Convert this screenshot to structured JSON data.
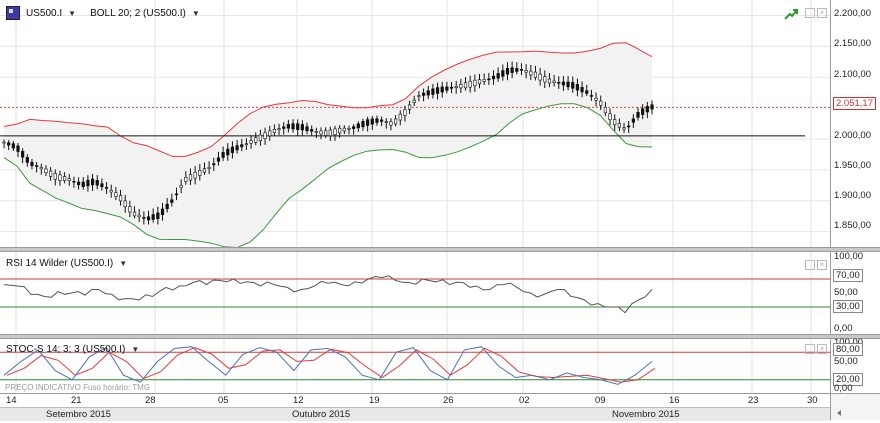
{
  "main": {
    "symbol": "US500.I",
    "indicator": "BOLL 20; 2 (US500.I)",
    "price_ticks": [
      "2.200,00",
      "2.150,00",
      "2.100,00",
      "2.051,17",
      "2.000,00",
      "1.950,00",
      "1.900,00",
      "1.850,00"
    ],
    "last_price": "2.051,17"
  },
  "rsi": {
    "label": "RSI 14 Wilder (US500.I)",
    "ticks": [
      "100,00",
      "70,00",
      "50,00",
      "30,00",
      "0,00"
    ]
  },
  "stoch": {
    "label": "STOC-S 14; 3; 3 (US500.I)",
    "ticks": [
      "100,00",
      "80,00",
      "50,00",
      "20,00",
      "0,00"
    ]
  },
  "footer": {
    "watermark": "PREÇO INDICATIVO   Fuso horário: TMG"
  },
  "xaxis": {
    "days": [
      "14",
      "21",
      "28",
      "05",
      "12",
      "19",
      "26",
      "02",
      "09",
      "16",
      "23",
      "30"
    ],
    "months": [
      "Setembro 2015",
      "Outubro 2015",
      "Novembro 2015"
    ]
  },
  "colors": {
    "upper_band": "#e8393a",
    "lower_band": "#3c9a3c",
    "candle": "#111111",
    "price_line": "#d24b4b",
    "rsi_line": "#555555",
    "stoch_k": "#4a73b8",
    "stoch_d": "#e83a3a"
  },
  "chart_data": [
    {
      "type": "line",
      "title": "US500.I",
      "series": [
        {
          "name": "US500.I",
          "values": [
            1995,
            1985,
            1960,
            1952,
            1940,
            1935,
            1925,
            1930,
            1920,
            1905,
            1880,
            1870,
            1875,
            1900,
            1935,
            1945,
            1955,
            1975,
            1985,
            1995,
            2005,
            2015,
            2020,
            2018,
            2012,
            2010,
            2015,
            2018,
            2025,
            2030,
            2025,
            2045,
            2070,
            2075,
            2080,
            2085,
            2090,
            2095,
            2100,
            2110,
            2112,
            2105,
            2095,
            2090,
            2085,
            2075,
            2060,
            2030,
            2015,
            2040,
            2051
          ]
        }
      ],
      "ylim": [
        1825,
        2225
      ]
    },
    {
      "type": "line",
      "title": "RSI 14 Wilder (US500.I)",
      "series": [
        {
          "name": "RSI 14 Wilder (US500.I)",
          "values": [
            62,
            60,
            48,
            45,
            52,
            50,
            47,
            55,
            48,
            42,
            40,
            45,
            58,
            60,
            65,
            62,
            68,
            70,
            66,
            60,
            62,
            58,
            55,
            60,
            64,
            62,
            66,
            70,
            72,
            68,
            65,
            70,
            66,
            62,
            65,
            60,
            55,
            62,
            58,
            50,
            48,
            55,
            45,
            40,
            35,
            30,
            22,
            40,
            55
          ]
        }
      ],
      "ylim": [
        0,
        100
      ]
    },
    {
      "type": "line",
      "title": "STOC-S 14; 3; 3 (US500.I)",
      "series": [
        {
          "name": "STOC-S 14; 3; 3 (US500.I)",
          "values": [
            30,
            60,
            85,
            40,
            20,
            70,
            90,
            30,
            15,
            60,
            88,
            92,
            60,
            30,
            75,
            90,
            80,
            40,
            85,
            88,
            70,
            30,
            20,
            80,
            90,
            40,
            20,
            85,
            92,
            50,
            25,
            30,
            20,
            35,
            25,
            20,
            10,
            30,
            60
          ]
        }
      ],
      "ylim": [
        0,
        100
      ]
    }
  ]
}
